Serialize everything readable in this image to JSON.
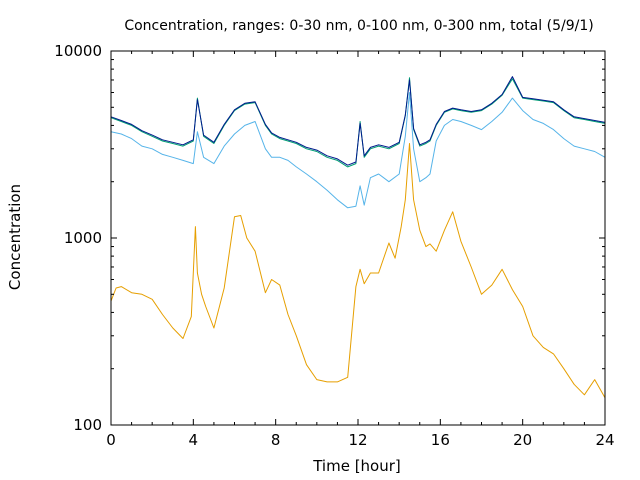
{
  "chart_data": {
    "type": "line",
    "title": "Concentration, ranges: 0-30 nm, 0-100 nm, 0-300 nm, total (5/9/1)",
    "xlabel": "Time [hour]",
    "ylabel": "Concentration",
    "xlim": [
      0,
      24
    ],
    "ylim": [
      100,
      10000
    ],
    "yscale": "log",
    "xticks": [
      0,
      4,
      8,
      12,
      16,
      20,
      24
    ],
    "yticks": [
      100,
      1000,
      10000
    ],
    "ytick_labels": [
      "100",
      "1000",
      "10000"
    ],
    "grid": false,
    "legend": "none",
    "series": [
      {
        "color": "#e69f00",
        "x": [
          0,
          0.25,
          0.5,
          1,
          1.5,
          2,
          2.5,
          3,
          3.5,
          3.9,
          4.1,
          4.2,
          4.4,
          4.6,
          5,
          5.5,
          6,
          6.3,
          6.6,
          7,
          7.5,
          7.8,
          8.2,
          8.6,
          9,
          9.5,
          10,
          10.5,
          11,
          11.5,
          11.9,
          12.1,
          12.3,
          12.6,
          13,
          13.5,
          13.8,
          14.1,
          14.3,
          14.5,
          14.7,
          15,
          15.3,
          15.5,
          15.8,
          16.2,
          16.6,
          17,
          17.5,
          18,
          18.5,
          19,
          19.5,
          20,
          20.5,
          21,
          21.5,
          22,
          22.5,
          23,
          23.5,
          24
        ],
        "values": [
          460,
          540,
          550,
          510,
          500,
          470,
          390,
          330,
          290,
          380,
          1150,
          650,
          500,
          430,
          330,
          540,
          1300,
          1320,
          1000,
          850,
          510,
          600,
          560,
          390,
          300,
          210,
          175,
          170,
          170,
          180,
          550,
          680,
          570,
          650,
          650,
          940,
          780,
          1150,
          1600,
          3200,
          1600,
          1100,
          900,
          930,
          850,
          1100,
          1380,
          960,
          700,
          500,
          560,
          680,
          530,
          430,
          300,
          260,
          240,
          200,
          165,
          145,
          175,
          140
        ]
      },
      {
        "color": "#56b4e9",
        "x": [
          0,
          0.5,
          1,
          1.5,
          2,
          2.5,
          3,
          3.5,
          4,
          4.2,
          4.5,
          5,
          5.5,
          6,
          6.5,
          7,
          7.5,
          7.8,
          8.2,
          8.6,
          9,
          9.5,
          10,
          10.5,
          11,
          11.5,
          11.9,
          12.1,
          12.3,
          12.6,
          13,
          13.5,
          14,
          14.3,
          14.5,
          14.7,
          15,
          15.3,
          15.5,
          15.8,
          16.2,
          16.6,
          17,
          17.5,
          18,
          18.5,
          19,
          19.5,
          20,
          20.5,
          21,
          21.5,
          22,
          22.5,
          23,
          23.5,
          24
        ],
        "values": [
          3700,
          3600,
          3400,
          3100,
          3000,
          2800,
          2700,
          2600,
          2500,
          3700,
          2700,
          2500,
          3100,
          3600,
          4000,
          4200,
          3000,
          2700,
          2700,
          2600,
          2400,
          2200,
          2000,
          1800,
          1600,
          1450,
          1480,
          1900,
          1500,
          2100,
          2200,
          2000,
          2200,
          3500,
          6000,
          3000,
          2000,
          2100,
          2200,
          3300,
          4000,
          4300,
          4200,
          4000,
          3800,
          4200,
          4700,
          5600,
          4800,
          4300,
          4100,
          3800,
          3400,
          3100,
          3000,
          2900,
          2700
        ]
      },
      {
        "color": "#009e73",
        "x": [
          0,
          0.5,
          1,
          1.5,
          2,
          2.5,
          3,
          3.5,
          4,
          4.2,
          4.5,
          5,
          5.5,
          6,
          6.5,
          7,
          7.5,
          7.8,
          8.2,
          8.6,
          9,
          9.5,
          10,
          10.5,
          11,
          11.5,
          11.9,
          12.1,
          12.3,
          12.6,
          13,
          13.5,
          14,
          14.3,
          14.5,
          14.7,
          15,
          15.3,
          15.5,
          15.8,
          16.2,
          16.6,
          17,
          17.5,
          18,
          18.5,
          19,
          19.5,
          20,
          20.5,
          21,
          21.5,
          22,
          22.5,
          23,
          23.5,
          24
        ],
        "values": [
          4400,
          4200,
          4000,
          3700,
          3500,
          3300,
          3200,
          3100,
          3300,
          5600,
          3500,
          3200,
          4000,
          4800,
          5200,
          5300,
          4000,
          3600,
          3400,
          3300,
          3200,
          3000,
          2900,
          2700,
          2600,
          2400,
          2500,
          4200,
          2700,
          3000,
          3100,
          3000,
          3200,
          4500,
          7200,
          3800,
          3100,
          3200,
          3300,
          4000,
          4700,
          4900,
          4800,
          4700,
          4800,
          5200,
          5800,
          7100,
          5600,
          5500,
          5400,
          5300,
          4800,
          4400,
          4300,
          4200,
          4100
        ]
      },
      {
        "color": "#001a8c",
        "x": [
          0,
          0.5,
          1,
          1.5,
          2,
          2.5,
          3,
          3.5,
          4,
          4.2,
          4.5,
          5,
          5.5,
          6,
          6.5,
          7,
          7.5,
          7.8,
          8.2,
          8.6,
          9,
          9.5,
          10,
          10.5,
          11,
          11.5,
          11.9,
          12.1,
          12.3,
          12.6,
          13,
          13.5,
          14,
          14.3,
          14.5,
          14.7,
          15,
          15.3,
          15.5,
          15.8,
          16.2,
          16.6,
          17,
          17.5,
          18,
          18.5,
          19,
          19.5,
          20,
          20.5,
          21,
          21.5,
          22,
          22.5,
          23,
          23.5,
          24
        ],
        "values": [
          4450,
          4250,
          4050,
          3750,
          3550,
          3350,
          3250,
          3150,
          3350,
          5500,
          3550,
          3250,
          4050,
          4850,
          5250,
          5350,
          4050,
          3650,
          3450,
          3350,
          3250,
          3050,
          2950,
          2750,
          2650,
          2450,
          2550,
          4100,
          2750,
          3050,
          3150,
          3050,
          3250,
          4550,
          7000,
          3850,
          3150,
          3250,
          3350,
          4050,
          4750,
          4950,
          4850,
          4750,
          4850,
          5250,
          5850,
          7300,
          5650,
          5550,
          5450,
          5350,
          4850,
          4450,
          4350,
          4250,
          4150
        ]
      }
    ]
  }
}
